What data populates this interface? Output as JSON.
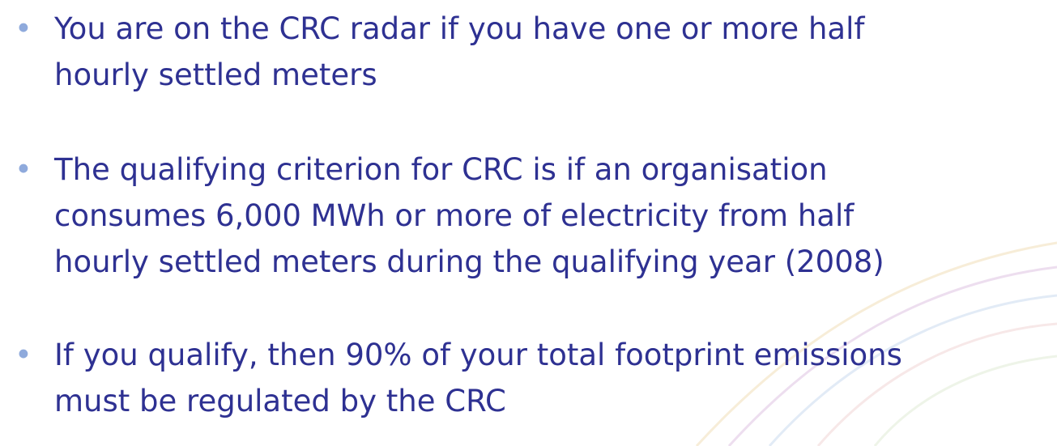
{
  "bullets": [
    {
      "lines": [
        "You are on the CRC radar if you have one or more half",
        "hourly settled meters"
      ]
    },
    {
      "lines": [
        "The qualifying criterion for CRC is if an organisation",
        "consumes 6,000 MWh or more of electricity from half",
        "hourly settled meters during the qualifying year (2008)"
      ]
    },
    {
      "lines": [
        "If you qualify, then 90% of your total footprint emissions",
        "must be regulated by the CRC"
      ]
    }
  ]
}
